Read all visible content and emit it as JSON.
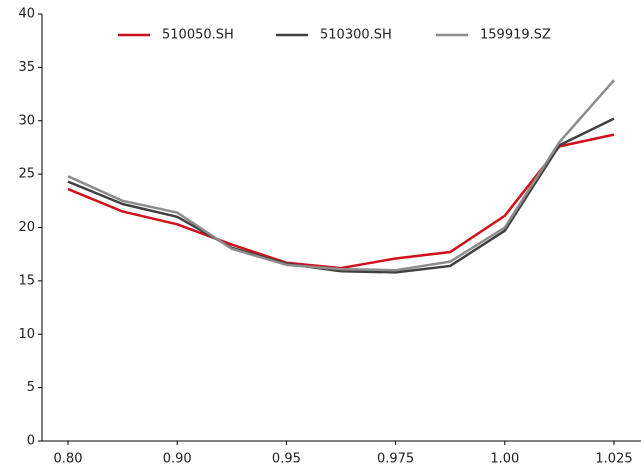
{
  "chart_data": {
    "type": "line",
    "categories": [
      "0.80",
      null,
      "0.90",
      null,
      "0.95",
      null,
      "0.975",
      null,
      "1.00",
      null,
      "1.025"
    ],
    "series": [
      {
        "name": "510050.SH",
        "color": "#d0111b",
        "values": [
          23.6,
          21.5,
          20.3,
          18.4,
          16.7,
          16.2,
          17.1,
          17.7,
          21.1,
          27.6,
          28.7
        ]
      },
      {
        "name": "510300.SH",
        "color": "#404040",
        "values": [
          24.3,
          22.2,
          21.0,
          18.1,
          16.6,
          15.9,
          15.8,
          16.4,
          19.7,
          27.7,
          30.2
        ]
      },
      {
        "name": "159919.SZ",
        "color": "#8c8c8c",
        "values": [
          24.8,
          22.5,
          21.4,
          18.0,
          16.5,
          16.1,
          16.0,
          16.8,
          20.0,
          28.0,
          33.8
        ]
      }
    ],
    "ylim": [
      0,
      40
    ],
    "yticks": [
      0,
      5,
      10,
      15,
      20,
      25,
      30,
      35,
      40
    ],
    "legend": "upper center"
  }
}
